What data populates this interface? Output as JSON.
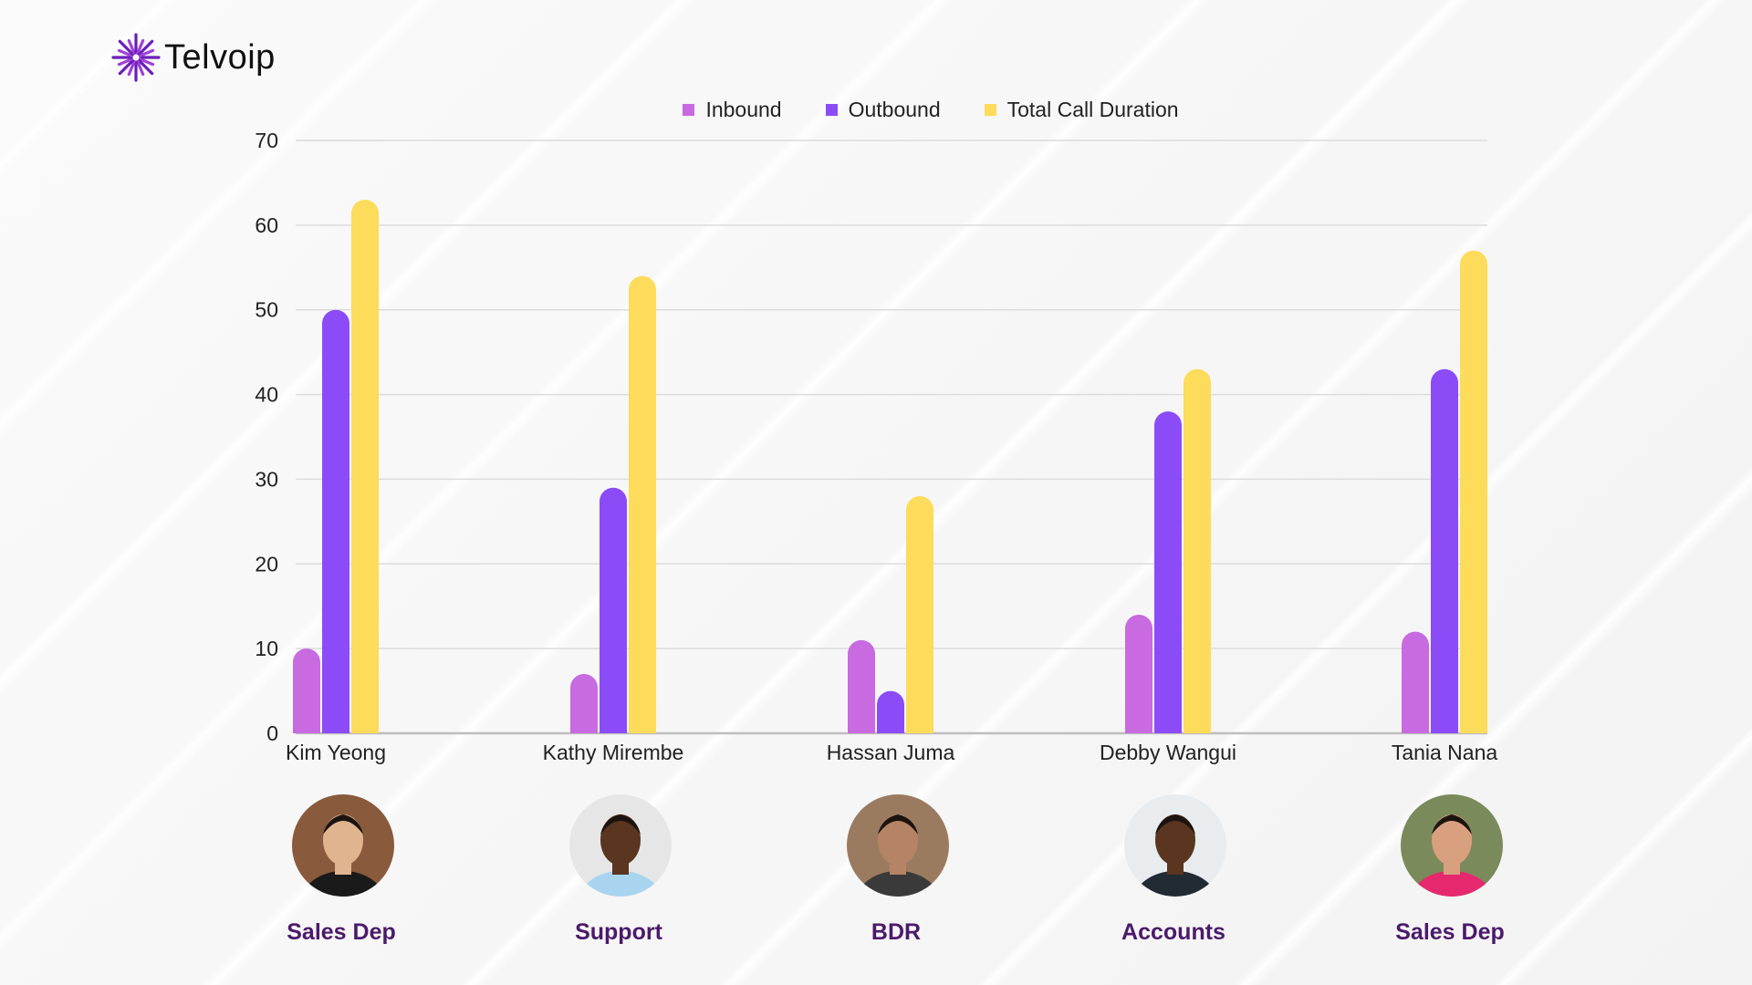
{
  "brand": {
    "name": "Telvoip",
    "color": "#7a2bc9"
  },
  "chart_data": {
    "type": "bar",
    "categories": [
      "Kim Yeong",
      "Kathy Mirembe",
      "Hassan Juma",
      "Debby Wangui",
      "Tania Nana"
    ],
    "series": [
      {
        "name": "Inbound",
        "color": "#c86ae0",
        "values": [
          10,
          7,
          11,
          14,
          12
        ]
      },
      {
        "name": "Outbound",
        "color": "#8b4cf7",
        "values": [
          50,
          29,
          5,
          38,
          43
        ]
      },
      {
        "name": "Total Call Duration",
        "color": "#fcdc5a",
        "values": [
          63,
          54,
          28,
          43,
          57
        ]
      }
    ],
    "ylim": [
      0,
      70
    ],
    "yticks": [
      "0",
      "10",
      "20",
      "30",
      "40",
      "50",
      "60",
      "70"
    ],
    "grid": true,
    "legend": "top"
  },
  "people": [
    {
      "name": "Kim Yeong",
      "department": "Sales Dep",
      "avatar_colors": [
        "#8a5a3c",
        "#e0b48e",
        "#1a1a1a"
      ]
    },
    {
      "name": "Kathy Mirembe",
      "department": "Support",
      "avatar_colors": [
        "#e6e6e6",
        "#5a3520",
        "#a8d4f0"
      ]
    },
    {
      "name": "Hassan Juma",
      "department": "BDR",
      "avatar_colors": [
        "#9b7b60",
        "#b58466",
        "#3a3a3a"
      ]
    },
    {
      "name": "Debby Wangui",
      "department": "Accounts",
      "avatar_colors": [
        "#e8ecef",
        "#5a3520",
        "#222a33"
      ]
    },
    {
      "name": "Tania Nana",
      "department": "Sales Dep",
      "avatar_colors": [
        "#7a8a5a",
        "#d9a080",
        "#e6286e"
      ]
    }
  ]
}
